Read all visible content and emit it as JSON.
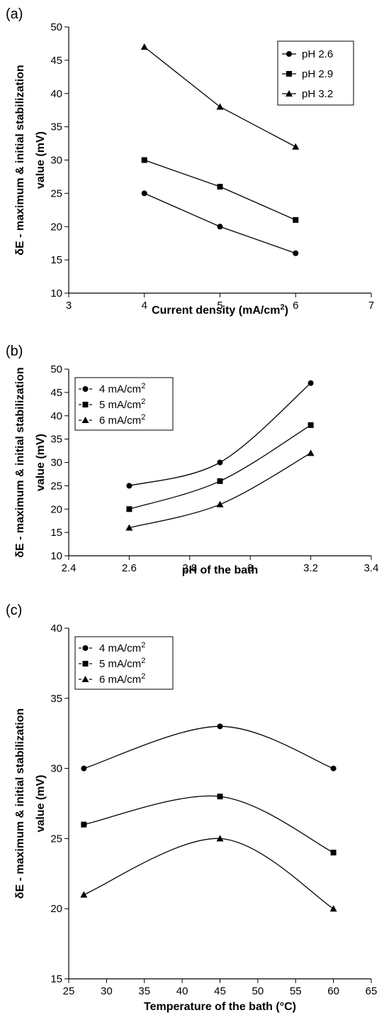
{
  "chart_data": [
    {
      "panel_label": "(a)",
      "type": "line",
      "xlabel": "Current density (mA/cm",
      "xlabel_sup": "2",
      "xlabel_end": ")",
      "ylabel_line1": "δE - maximum & initial stabilization",
      "ylabel_line2": "value (mV)",
      "xlim": [
        3,
        7
      ],
      "ylim": [
        10,
        50
      ],
      "x_ticks": [
        3,
        4,
        5,
        6,
        7
      ],
      "y_ticks": [
        10,
        15,
        20,
        25,
        30,
        35,
        40,
        45,
        50
      ],
      "legend_placement": "top-right",
      "legend_style": "box",
      "series": [
        {
          "name": "pH 2.6",
          "marker": "circle",
          "x": [
            4,
            5,
            6
          ],
          "y": [
            25,
            20,
            16
          ]
        },
        {
          "name": "pH 2.9",
          "marker": "square",
          "x": [
            4,
            5,
            6
          ],
          "y": [
            30,
            26,
            21
          ]
        },
        {
          "name": "pH 3.2",
          "marker": "triangle",
          "x": [
            4,
            5,
            6
          ],
          "y": [
            47,
            38,
            32
          ]
        }
      ]
    },
    {
      "panel_label": "(b)",
      "type": "line",
      "xlabel": "pH of the bath",
      "xlabel_sup": "",
      "xlabel_end": "",
      "ylabel_line1": "δE - maximum & initial stabilization",
      "ylabel_line2": "value (mV)",
      "xlim": [
        2.4,
        3.4
      ],
      "ylim": [
        10,
        50
      ],
      "x_ticks": [
        2.4,
        2.6,
        2.8,
        3,
        3.2,
        3.4
      ],
      "y_ticks": [
        10,
        15,
        20,
        25,
        30,
        35,
        40,
        45,
        50
      ],
      "legend_placement": "top-left",
      "legend_style": "box",
      "series": [
        {
          "name": "4 mA/cm",
          "name_sup": "2",
          "marker": "circle",
          "x": [
            2.6,
            2.9,
            3.2
          ],
          "y": [
            25,
            30,
            47
          ]
        },
        {
          "name": "5 mA/cm",
          "name_sup": "2",
          "marker": "square",
          "x": [
            2.6,
            2.9,
            3.2
          ],
          "y": [
            20,
            26,
            38
          ]
        },
        {
          "name": "6 mA/cm",
          "name_sup": "2",
          "marker": "triangle",
          "x": [
            2.6,
            2.9,
            3.2
          ],
          "y": [
            16,
            21,
            32
          ]
        }
      ]
    },
    {
      "panel_label": "(c)",
      "type": "line",
      "xlabel": "Temperature of the bath (°C)",
      "xlabel_sup": "",
      "xlabel_end": "",
      "ylabel_line1": "δE - maximum & initial stabilization",
      "ylabel_line2": "value (mV)",
      "xlim": [
        25,
        65
      ],
      "ylim": [
        15,
        40
      ],
      "x_ticks": [
        25,
        30,
        35,
        40,
        45,
        50,
        55,
        60,
        65
      ],
      "y_ticks": [
        15,
        20,
        25,
        30,
        35,
        40
      ],
      "legend_placement": "top-left",
      "legend_style": "box",
      "series": [
        {
          "name": "4 mA/cm",
          "name_sup": "2",
          "marker": "circle",
          "x": [
            27,
            45,
            60
          ],
          "y": [
            30,
            33,
            30
          ]
        },
        {
          "name": "5 mA/cm",
          "name_sup": "2",
          "marker": "square",
          "x": [
            27,
            45,
            60
          ],
          "y": [
            26,
            28,
            24
          ]
        },
        {
          "name": "6 mA/cm",
          "name_sup": "2",
          "marker": "triangle",
          "x": [
            27,
            45,
            60
          ],
          "y": [
            21,
            25,
            20
          ]
        }
      ]
    }
  ]
}
